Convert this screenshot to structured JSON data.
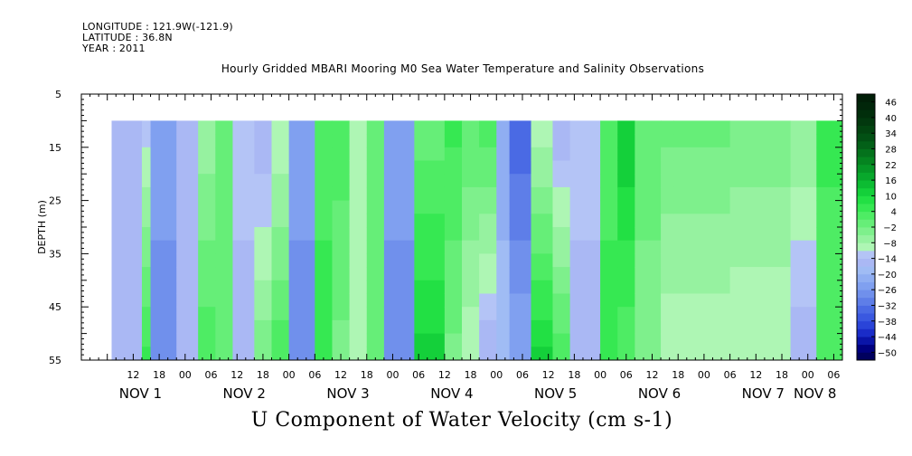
{
  "meta": {
    "longitude": "LONGITUDE : 121.9W(-121.9)",
    "latitude": "LATITUDE : 36.8N",
    "year": "YEAR : 2011"
  },
  "chart_data": {
    "type": "heatmap",
    "title": "Hourly Gridded MBARI Mooring M0 Sea Water Temperature and Salinity Observations",
    "xlabel": "U Component of Water Velocity (cm s-1)",
    "ylabel": "DEPTH (m)",
    "xlim_hours": [
      0,
      168
    ],
    "ylim": [
      5,
      55
    ],
    "y_inverted": true,
    "y_ticks": [
      5,
      15,
      25,
      35,
      45,
      55
    ],
    "x_hour_ticks": [
      {
        "label": "12",
        "hour": 12
      },
      {
        "label": "18",
        "hour": 18
      },
      {
        "label": "00",
        "hour": 24
      },
      {
        "label": "06",
        "hour": 30
      },
      {
        "label": "12",
        "hour": 36
      },
      {
        "label": "18",
        "hour": 42
      },
      {
        "label": "00",
        "hour": 48
      },
      {
        "label": "06",
        "hour": 54
      },
      {
        "label": "12",
        "hour": 60
      },
      {
        "label": "18",
        "hour": 66
      },
      {
        "label": "00",
        "hour": 72
      },
      {
        "label": "06",
        "hour": 78
      },
      {
        "label": "12",
        "hour": 84
      },
      {
        "label": "18",
        "hour": 90
      },
      {
        "label": "00",
        "hour": 96
      },
      {
        "label": "06",
        "hour": 102
      },
      {
        "label": "12",
        "hour": 108
      },
      {
        "label": "18",
        "hour": 114
      },
      {
        "label": "00",
        "hour": 120
      },
      {
        "label": "06",
        "hour": 126
      },
      {
        "label": "12",
        "hour": 132
      },
      {
        "label": "18",
        "hour": 138
      },
      {
        "label": "00",
        "hour": 144
      },
      {
        "label": "06",
        "hour": 150
      },
      {
        "label": "12",
        "hour": 156
      },
      {
        "label": "18",
        "hour": 162
      },
      {
        "label": "00",
        "hour": 168
      },
      {
        "label": "06",
        "hour": 174
      }
    ],
    "x_day_labels": [
      {
        "label": "NOV  1",
        "hour": 12
      },
      {
        "label": "NOV  2",
        "hour": 36
      },
      {
        "label": "NOV  3",
        "hour": 60
      },
      {
        "label": "NOV  4",
        "hour": 84
      },
      {
        "label": "NOV  5",
        "hour": 108
      },
      {
        "label": "NOV  6",
        "hour": 132
      },
      {
        "label": "NOV  7",
        "hour": 156
      },
      {
        "label": "NOV  8",
        "hour": 168
      }
    ],
    "data_depth_range": [
      10,
      55
    ],
    "data_hour_range": [
      7,
      176
    ],
    "columns": [
      {
        "hour_start": 7,
        "hour_end": 14,
        "surface": -14,
        "bottom": -14,
        "colorbar_note": "blue"
      },
      {
        "hour_start": 14,
        "hour_end": 16,
        "surface": -10,
        "bottom": 8
      },
      {
        "hour_start": 16,
        "hour_end": 22,
        "surface": -20,
        "bottom": -26
      },
      {
        "hour_start": 22,
        "hour_end": 27,
        "surface": -14,
        "bottom": -12
      },
      {
        "hour_start": 27,
        "hour_end": 31,
        "surface": -4,
        "bottom": 6
      },
      {
        "hour_start": 31,
        "hour_end": 35,
        "surface": 4,
        "bottom": 2
      },
      {
        "hour_start": 35,
        "hour_end": 40,
        "surface": -8,
        "bottom": -14
      },
      {
        "hour_start": 40,
        "hour_end": 44,
        "surface": -14,
        "bottom": 0
      },
      {
        "hour_start": 44,
        "hour_end": 48,
        "surface": -8,
        "bottom": 6
      },
      {
        "hour_start": 48,
        "hour_end": 54,
        "surface": -20,
        "bottom": -26
      },
      {
        "hour_start": 54,
        "hour_end": 58,
        "surface": 4,
        "bottom": 10
      },
      {
        "hour_start": 58,
        "hour_end": 62,
        "surface": 6,
        "bottom": 0
      },
      {
        "hour_start": 62,
        "hour_end": 66,
        "surface": -8,
        "bottom": -8
      },
      {
        "hour_start": 66,
        "hour_end": 70,
        "surface": 4,
        "bottom": 2
      },
      {
        "hour_start": 70,
        "hour_end": 77,
        "surface": -20,
        "bottom": -26
      },
      {
        "hour_start": 77,
        "hour_end": 84,
        "surface": 2,
        "bottom": 14
      },
      {
        "hour_start": 84,
        "hour_end": 88,
        "surface": 8,
        "bottom": 0
      },
      {
        "hour_start": 88,
        "hour_end": 92,
        "surface": 4,
        "bottom": -8
      },
      {
        "hour_start": 92,
        "hour_end": 96,
        "surface": 6,
        "bottom": -14
      },
      {
        "hour_start": 96,
        "hour_end": 99,
        "surface": -20,
        "bottom": -14
      },
      {
        "hour_start": 99,
        "hour_end": 104,
        "surface": -32,
        "bottom": -20
      },
      {
        "hour_start": 104,
        "hour_end": 109,
        "surface": -8,
        "bottom": 14
      },
      {
        "hour_start": 109,
        "hour_end": 113,
        "surface": -14,
        "bottom": 6
      },
      {
        "hour_start": 113,
        "hour_end": 120,
        "surface": -8,
        "bottom": -14
      },
      {
        "hour_start": 120,
        "hour_end": 124,
        "surface": 4,
        "bottom": 10
      },
      {
        "hour_start": 124,
        "hour_end": 128,
        "surface": 16,
        "bottom": 4
      },
      {
        "hour_start": 128,
        "hour_end": 134,
        "surface": 4,
        "bottom": -2
      },
      {
        "hour_start": 134,
        "hour_end": 137,
        "surface": 2,
        "bottom": -8
      },
      {
        "hour_start": 137,
        "hour_end": 150,
        "surface": 2,
        "bottom": -8
      },
      {
        "hour_start": 150,
        "hour_end": 164,
        "surface": 0,
        "bottom": -8
      },
      {
        "hour_start": 164,
        "hour_end": 170,
        "surface": -2,
        "bottom": -14
      },
      {
        "hour_start": 170,
        "hour_end": 176,
        "surface": 8,
        "bottom": 4
      }
    ],
    "colorbar": {
      "labels": [
        "46",
        "40",
        "34",
        "28",
        "22",
        "16",
        "10",
        "4",
        "−2",
        "−8",
        "−14",
        "−20",
        "−26",
        "−32",
        "−38",
        "−44",
        "−50"
      ],
      "min": -50,
      "max": 52,
      "step": 3,
      "colors_low_to_high": [
        "#00005e",
        "#000080",
        "#0a14a8",
        "#1a2cc8",
        "#2a44d8",
        "#3a58e0",
        "#4a6ae4",
        "#5e7ee8",
        "#7090ec",
        "#80a0f0",
        "#90aef2",
        "#a0bcf4",
        "#aab8f4",
        "#b4c4f6",
        "#aef6b4",
        "#96f2a0",
        "#7ef08c",
        "#66ee78",
        "#4eec64",
        "#36e852",
        "#22e044",
        "#14d03a",
        "#0cbc32",
        "#08a82c",
        "#069626",
        "#058420",
        "#04721c",
        "#036018",
        "#025014",
        "#024410",
        "#02380e",
        "#012e0b",
        "#01260a",
        "#011f08"
      ]
    }
  }
}
